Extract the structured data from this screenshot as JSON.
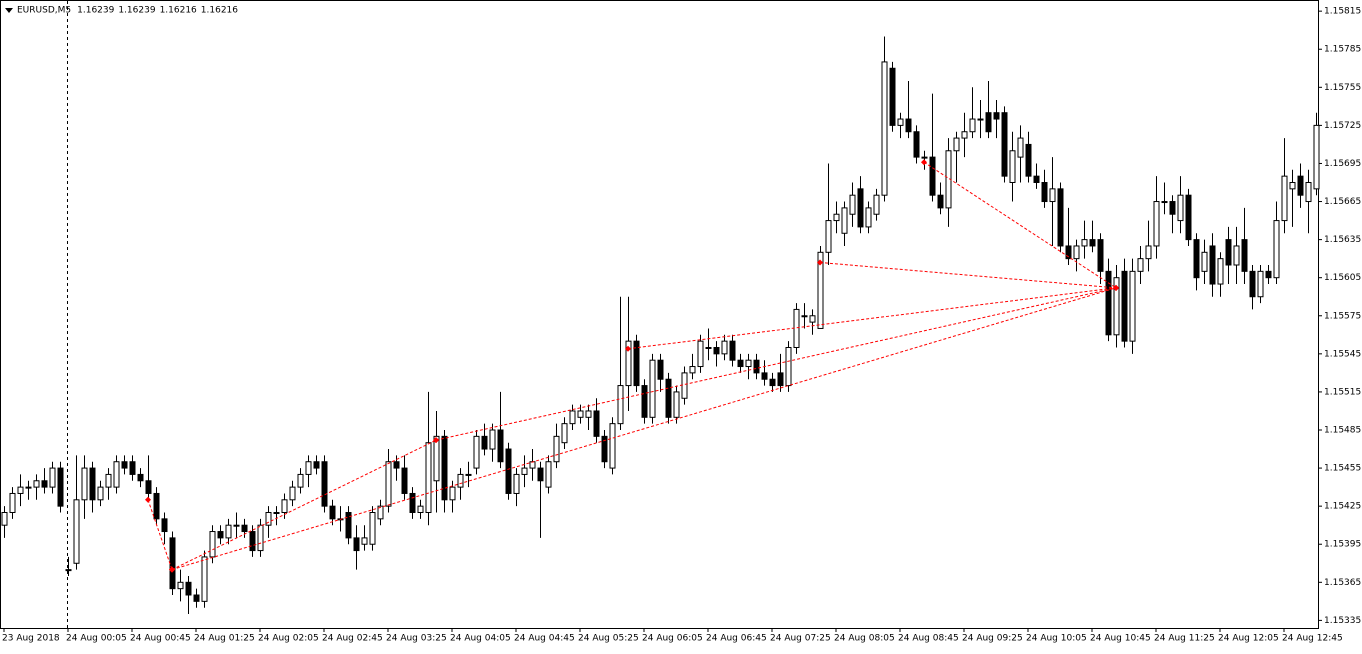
{
  "chart_data": {
    "type": "candlestick",
    "symbol": "EURUSD,M5",
    "quote": [
      1.16239,
      1.16239,
      1.16216,
      1.16216
    ],
    "categories": [
      "23 Aug 2018",
      null,
      null,
      null,
      null,
      null,
      null,
      null,
      "24 Aug 00:05",
      null,
      null,
      null,
      null,
      null,
      null,
      null,
      "24 Aug 00:45",
      null,
      null,
      null,
      null,
      null,
      null,
      null,
      "24 Aug 01:25",
      null,
      null,
      null,
      null,
      null,
      null,
      null,
      "24 Aug 02:05",
      null,
      null,
      null,
      null,
      null,
      null,
      null,
      "24 Aug 02:45",
      null,
      null,
      null,
      null,
      null,
      null,
      null,
      "24 Aug 03:25",
      null,
      null,
      null,
      null,
      null,
      null,
      null,
      "24 Aug 04:05",
      null,
      null,
      null,
      null,
      null,
      null,
      null,
      "24 Aug 04:45",
      null,
      null,
      null,
      null,
      null,
      null,
      null,
      "24 Aug 05:25",
      null,
      null,
      null,
      null,
      null,
      null,
      null,
      "24 Aug 06:05",
      null,
      null,
      null,
      null,
      null,
      null,
      null,
      "24 Aug 06:45",
      null,
      null,
      null,
      null,
      null,
      null,
      null,
      "24 Aug 07:25",
      null,
      null,
      null,
      null,
      null,
      null,
      null,
      "24 Aug 08:05",
      null,
      null,
      null,
      null,
      null,
      null,
      null,
      "24 Aug 08:45",
      null,
      null,
      null,
      null,
      null,
      null,
      null,
      "24 Aug 09:25",
      null,
      null,
      null,
      null,
      null,
      null,
      null,
      "24 Aug 10:05",
      null,
      null,
      null,
      null,
      null,
      null,
      null,
      "24 Aug 10:45",
      null,
      null,
      null,
      null,
      null,
      null,
      null,
      "24 Aug 11:25",
      null,
      null,
      null,
      null,
      null,
      null,
      null,
      "24 Aug 12:05",
      null,
      null,
      null,
      null,
      null,
      null,
      null,
      "24 Aug 12:45",
      null,
      null,
      null,
      null
    ],
    "ohlc": [
      [
        1.1541,
        1.15425,
        1.154,
        1.1542
      ],
      [
        1.1542,
        1.1544,
        1.15415,
        1.15435
      ],
      [
        1.15435,
        1.1545,
        1.15425,
        1.1544
      ],
      [
        1.1544,
        1.15445,
        1.1543,
        1.1544
      ],
      [
        1.1544,
        1.1545,
        1.1543,
        1.15445
      ],
      [
        1.15445,
        1.15455,
        1.15435,
        1.1544
      ],
      [
        1.1544,
        1.1546,
        1.15435,
        1.15455
      ],
      [
        1.15455,
        1.1546,
        1.1542,
        1.15425
      ],
      [
        1.15375,
        1.15385,
        1.1537,
        1.15375
      ],
      [
        1.1538,
        1.15465,
        1.15375,
        1.1543
      ],
      [
        1.1543,
        1.15465,
        1.15415,
        1.15455
      ],
      [
        1.15455,
        1.1546,
        1.1542,
        1.1543
      ],
      [
        1.1543,
        1.15445,
        1.15425,
        1.1544
      ],
      [
        1.1544,
        1.15455,
        1.1543,
        1.1545
      ],
      [
        1.1544,
        1.15465,
        1.15435,
        1.1546
      ],
      [
        1.1546,
        1.15465,
        1.1545,
        1.15455
      ],
      [
        1.1546,
        1.15465,
        1.15445,
        1.1545
      ],
      [
        1.1545,
        1.15455,
        1.1544,
        1.15445
      ],
      [
        1.15445,
        1.15465,
        1.1543,
        1.15435
      ],
      [
        1.15435,
        1.1544,
        1.1541,
        1.15415
      ],
      [
        1.15415,
        1.1542,
        1.15395,
        1.15405
      ],
      [
        1.154,
        1.15405,
        1.15355,
        1.1536
      ],
      [
        1.1536,
        1.15375,
        1.1535,
        1.15365
      ],
      [
        1.15365,
        1.1537,
        1.1534,
        1.15355
      ],
      [
        1.15355,
        1.1536,
        1.15345,
        1.1535
      ],
      [
        1.1535,
        1.1539,
        1.15345,
        1.15385
      ],
      [
        1.15385,
        1.1541,
        1.1538,
        1.15405
      ],
      [
        1.15405,
        1.1541,
        1.15395,
        1.154
      ],
      [
        1.154,
        1.15415,
        1.15395,
        1.1541
      ],
      [
        1.1541,
        1.1542,
        1.154,
        1.1541
      ],
      [
        1.1541,
        1.15415,
        1.154,
        1.15405
      ],
      [
        1.15405,
        1.1541,
        1.15385,
        1.1539
      ],
      [
        1.1539,
        1.15415,
        1.15385,
        1.1541
      ],
      [
        1.1541,
        1.15425,
        1.154,
        1.1542
      ],
      [
        1.1542,
        1.15425,
        1.1541,
        1.1542
      ],
      [
        1.1542,
        1.15435,
        1.15415,
        1.1543
      ],
      [
        1.1543,
        1.15445,
        1.15425,
        1.1544
      ],
      [
        1.1544,
        1.15455,
        1.15435,
        1.1545
      ],
      [
        1.1545,
        1.15465,
        1.1544,
        1.1546
      ],
      [
        1.1546,
        1.15465,
        1.1545,
        1.15455
      ],
      [
        1.1546,
        1.15465,
        1.1542,
        1.15425
      ],
      [
        1.15425,
        1.1543,
        1.1541,
        1.15415
      ],
      [
        1.15415,
        1.15425,
        1.15405,
        1.15415
      ],
      [
        1.1542,
        1.15425,
        1.15395,
        1.154
      ],
      [
        1.154,
        1.1541,
        1.15375,
        1.1539
      ],
      [
        1.15395,
        1.1541,
        1.1539,
        1.154
      ],
      [
        1.15395,
        1.15425,
        1.1539,
        1.1542
      ],
      [
        1.15415,
        1.1543,
        1.1541,
        1.15425
      ],
      [
        1.15425,
        1.1547,
        1.1542,
        1.1546
      ],
      [
        1.1546,
        1.15465,
        1.15445,
        1.15455
      ],
      [
        1.15455,
        1.15465,
        1.1543,
        1.15435
      ],
      [
        1.15435,
        1.1544,
        1.15415,
        1.1542
      ],
      [
        1.1542,
        1.1543,
        1.15415,
        1.15425
      ],
      [
        1.1542,
        1.15515,
        1.1541,
        1.15475
      ],
      [
        1.15445,
        1.155,
        1.1542,
        1.1548
      ],
      [
        1.1548,
        1.15485,
        1.1542,
        1.1543
      ],
      [
        1.1543,
        1.15445,
        1.1542,
        1.1544
      ],
      [
        1.1544,
        1.15455,
        1.1543,
        1.1545
      ],
      [
        1.1545,
        1.1546,
        1.1544,
        1.1545
      ],
      [
        1.15455,
        1.15485,
        1.1545,
        1.1548
      ],
      [
        1.1548,
        1.1549,
        1.15465,
        1.1547
      ],
      [
        1.1547,
        1.1549,
        1.1546,
        1.15485
      ],
      [
        1.15485,
        1.15515,
        1.15455,
        1.1546
      ],
      [
        1.1547,
        1.15475,
        1.1543,
        1.15435
      ],
      [
        1.15435,
        1.15455,
        1.15425,
        1.1545
      ],
      [
        1.1545,
        1.15465,
        1.1544,
        1.15455
      ],
      [
        1.15455,
        1.1547,
        1.15445,
        1.1546
      ],
      [
        1.15455,
        1.1546,
        1.154,
        1.15445
      ],
      [
        1.1544,
        1.15465,
        1.15435,
        1.1546
      ],
      [
        1.1546,
        1.1549,
        1.15455,
        1.1548
      ],
      [
        1.15475,
        1.15495,
        1.1547,
        1.1549
      ],
      [
        1.1549,
        1.15505,
        1.15485,
        1.155
      ],
      [
        1.15495,
        1.15505,
        1.1549,
        1.155
      ],
      [
        1.15495,
        1.15505,
        1.15485,
        1.155
      ],
      [
        1.155,
        1.1551,
        1.15475,
        1.1548
      ],
      [
        1.1548,
        1.15485,
        1.15455,
        1.1546
      ],
      [
        1.15455,
        1.15495,
        1.1545,
        1.1549
      ],
      [
        1.1549,
        1.1559,
        1.15485,
        1.1552
      ],
      [
        1.1552,
        1.1559,
        1.155,
        1.15555
      ],
      [
        1.15555,
        1.1556,
        1.15515,
        1.1552
      ],
      [
        1.1552,
        1.15525,
        1.1549,
        1.15495
      ],
      [
        1.15495,
        1.15545,
        1.1549,
        1.1554
      ],
      [
        1.1554,
        1.15545,
        1.15515,
        1.15525
      ],
      [
        1.15525,
        1.1553,
        1.1549,
        1.15495
      ],
      [
        1.15495,
        1.1552,
        1.1549,
        1.15515
      ],
      [
        1.1551,
        1.15535,
        1.15505,
        1.1553
      ],
      [
        1.1553,
        1.15545,
        1.15525,
        1.15535
      ],
      [
        1.15535,
        1.1556,
        1.1553,
        1.15555
      ],
      [
        1.1555,
        1.15565,
        1.1554,
        1.1555
      ],
      [
        1.1555,
        1.15555,
        1.15535,
        1.15545
      ],
      [
        1.15545,
        1.1556,
        1.1554,
        1.15555
      ],
      [
        1.15555,
        1.1556,
        1.15535,
        1.1554
      ],
      [
        1.1554,
        1.15545,
        1.1553,
        1.15535
      ],
      [
        1.15535,
        1.15545,
        1.15525,
        1.1554
      ],
      [
        1.1554,
        1.15545,
        1.15525,
        1.1553
      ],
      [
        1.1553,
        1.1554,
        1.1552,
        1.15525
      ],
      [
        1.15525,
        1.1553,
        1.15515,
        1.1552
      ],
      [
        1.1553,
        1.15545,
        1.15515,
        1.1552
      ],
      [
        1.1552,
        1.15555,
        1.15515,
        1.1555
      ],
      [
        1.1555,
        1.15585,
        1.15545,
        1.1558
      ],
      [
        1.15575,
        1.15585,
        1.15565,
        1.15575
      ],
      [
        1.1557,
        1.1558,
        1.1556,
        1.15575
      ],
      [
        1.15565,
        1.1563,
        1.15565,
        1.15625
      ],
      [
        1.15625,
        1.15695,
        1.15615,
        1.1565
      ],
      [
        1.1565,
        1.15665,
        1.1564,
        1.15655
      ],
      [
        1.1564,
        1.15665,
        1.1563,
        1.1566
      ],
      [
        1.15655,
        1.1568,
        1.15645,
        1.1567
      ],
      [
        1.15675,
        1.15685,
        1.1564,
        1.15645
      ],
      [
        1.15645,
        1.15665,
        1.1564,
        1.1566
      ],
      [
        1.15655,
        1.15675,
        1.1565,
        1.1567
      ],
      [
        1.1567,
        1.15795,
        1.15665,
        1.15775
      ],
      [
        1.1577,
        1.15775,
        1.1572,
        1.15725
      ],
      [
        1.15725,
        1.15735,
        1.15715,
        1.1573
      ],
      [
        1.1573,
        1.1576,
        1.15715,
        1.1572
      ],
      [
        1.1572,
        1.15725,
        1.15695,
        1.157
      ],
      [
        1.157,
        1.15705,
        1.1569,
        1.157
      ],
      [
        1.157,
        1.1575,
        1.15665,
        1.1567
      ],
      [
        1.1567,
        1.1568,
        1.15655,
        1.1566
      ],
      [
        1.1566,
        1.15715,
        1.15645,
        1.15705
      ],
      [
        1.15705,
        1.1572,
        1.1568,
        1.15715
      ],
      [
        1.15715,
        1.15735,
        1.157,
        1.1572
      ],
      [
        1.1572,
        1.15755,
        1.15715,
        1.1573
      ],
      [
        1.1573,
        1.15745,
        1.15715,
        1.1573
      ],
      [
        1.15735,
        1.1576,
        1.15715,
        1.1572
      ],
      [
        1.15735,
        1.15745,
        1.15715,
        1.1573
      ],
      [
        1.15735,
        1.1574,
        1.1568,
        1.15685
      ],
      [
        1.1568,
        1.1572,
        1.15665,
        1.15705
      ],
      [
        1.157,
        1.15725,
        1.1568,
        1.15715
      ],
      [
        1.1571,
        1.1572,
        1.1568,
        1.15685
      ],
      [
        1.15685,
        1.15695,
        1.15675,
        1.1568
      ],
      [
        1.1568,
        1.1569,
        1.1566,
        1.15665
      ],
      [
        1.15665,
        1.157,
        1.1563,
        1.15675
      ],
      [
        1.15675,
        1.1568,
        1.15625,
        1.1563
      ],
      [
        1.1563,
        1.1566,
        1.15615,
        1.1562
      ],
      [
        1.1562,
        1.15635,
        1.1561,
        1.1563
      ],
      [
        1.1563,
        1.1565,
        1.1562,
        1.15635
      ],
      [
        1.15635,
        1.1565,
        1.15625,
        1.1563
      ],
      [
        1.15635,
        1.1564,
        1.156,
        1.1561
      ],
      [
        1.1561,
        1.1562,
        1.15555,
        1.1556
      ],
      [
        1.1556,
        1.15615,
        1.1555,
        1.15605
      ],
      [
        1.1561,
        1.1562,
        1.1555,
        1.15555
      ],
      [
        1.15555,
        1.1562,
        1.15545,
        1.1561
      ],
      [
        1.1561,
        1.1563,
        1.156,
        1.1562
      ],
      [
        1.1562,
        1.1565,
        1.1561,
        1.1563
      ],
      [
        1.1563,
        1.15685,
        1.1562,
        1.15665
      ],
      [
        1.15665,
        1.1568,
        1.15655,
        1.15665
      ],
      [
        1.15665,
        1.1567,
        1.1564,
        1.15655
      ],
      [
        1.1565,
        1.15685,
        1.1564,
        1.1567
      ],
      [
        1.1567,
        1.15675,
        1.1563,
        1.15635
      ],
      [
        1.15635,
        1.1564,
        1.15595,
        1.15605
      ],
      [
        1.1561,
        1.15635,
        1.156,
        1.15625
      ],
      [
        1.1563,
        1.1564,
        1.1559,
        1.156
      ],
      [
        1.156,
        1.15625,
        1.1559,
        1.1562
      ],
      [
        1.15635,
        1.15645,
        1.156,
        1.15615
      ],
      [
        1.15615,
        1.15645,
        1.156,
        1.1563
      ],
      [
        1.15635,
        1.1566,
        1.156,
        1.1561
      ],
      [
        1.1561,
        1.15615,
        1.1558,
        1.1559
      ],
      [
        1.1559,
        1.15615,
        1.15585,
        1.1561
      ],
      [
        1.1561,
        1.15615,
        1.156,
        1.15605
      ],
      [
        1.15605,
        1.15665,
        1.156,
        1.1565
      ],
      [
        1.1565,
        1.15715,
        1.1564,
        1.15685
      ],
      [
        1.15675,
        1.1569,
        1.15645,
        1.1568
      ],
      [
        1.15685,
        1.15695,
        1.1566,
        1.1567
      ],
      [
        1.15665,
        1.1569,
        1.1564,
        1.1568
      ],
      [
        1.15675,
        1.15735,
        1.1567,
        1.15725
      ]
    ],
    "trade_lines": [
      [
        18,
        1.1543,
        21,
        1.15375
      ],
      [
        21,
        1.15375,
        54,
        1.15477
      ],
      [
        54,
        1.15477,
        139,
        1.15597
      ],
      [
        78,
        1.15549,
        139,
        1.15597
      ],
      [
        102,
        1.15617,
        139,
        1.15597
      ],
      [
        115,
        1.15696,
        139,
        1.15597
      ],
      [
        21,
        1.15375,
        139,
        1.15597
      ]
    ],
    "ylim": [
      1.15329,
      1.15823
    ],
    "yticks": [
      1.15335,
      1.15365,
      1.15395,
      1.15425,
      1.15455,
      1.15485,
      1.15515,
      1.15545,
      1.15575,
      1.15605,
      1.15635,
      1.15665,
      1.15695,
      1.15725,
      1.15755,
      1.15785,
      1.15815
    ],
    "up_color": "#ffffff",
    "down_color": "#000000",
    "line_color": "#000000",
    "trade_color": "#ff0000"
  }
}
